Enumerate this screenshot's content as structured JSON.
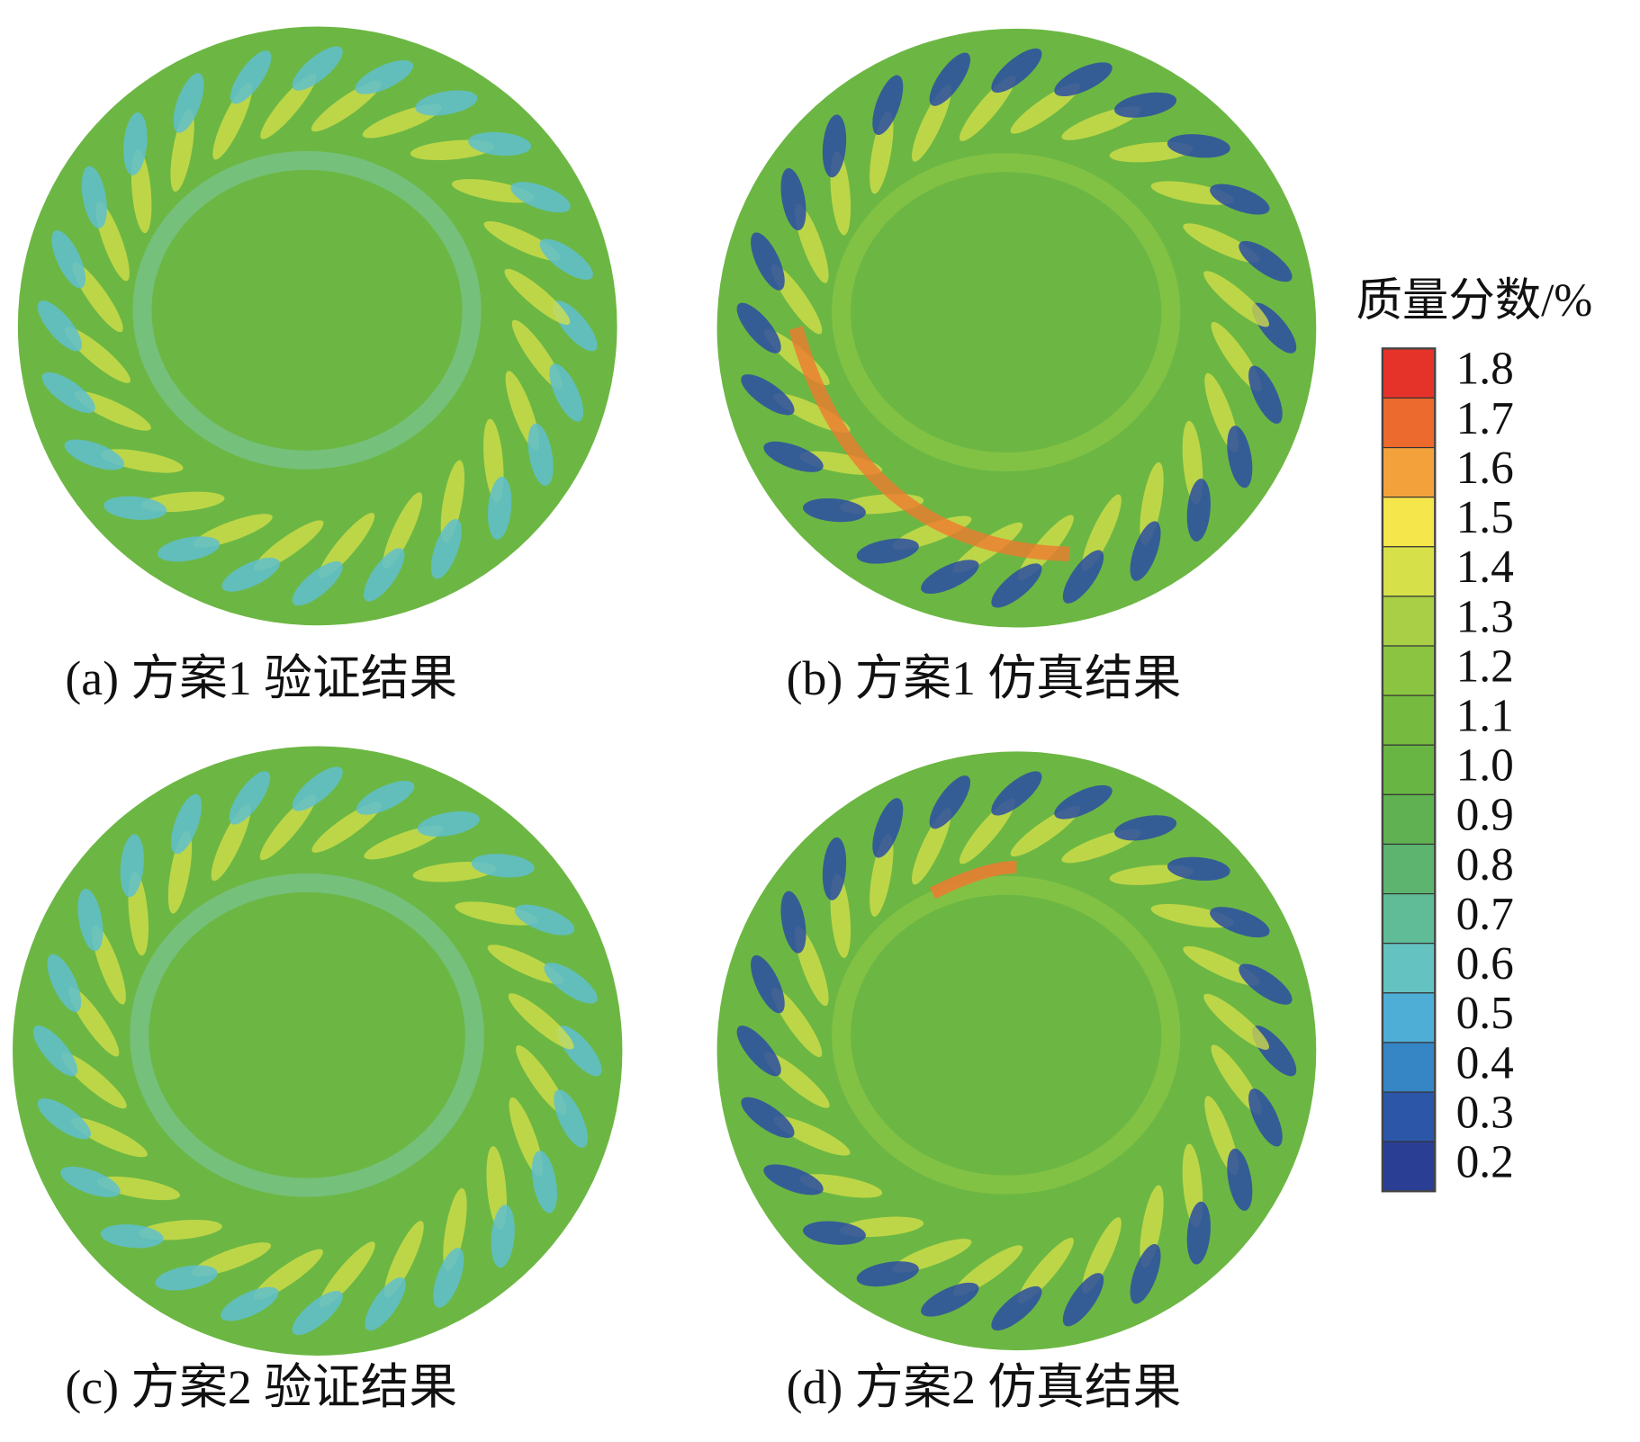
{
  "panels": [
    {
      "caption": "(a) 方案1 验证结果"
    },
    {
      "caption": "(b) 方案1 仿真结果"
    },
    {
      "caption": "(c) 方案2 验证结果"
    },
    {
      "caption": "(d) 方案2 仿真结果"
    }
  ],
  "colorbar": {
    "title": "质量分数/%",
    "ticks": [
      1.8,
      1.7,
      1.6,
      1.5,
      1.4,
      1.3,
      1.2,
      1.1,
      {
        "value": 1.0,
        "label": "1.0"
      },
      0.9,
      0.8,
      0.7,
      0.6,
      0.5,
      0.4,
      0.3,
      0.2
    ],
    "colors": [
      "#e5332a",
      "#ec6a2d",
      "#f3a23b",
      "#f5e64b",
      "#d6e14a",
      "#a8cf45",
      "#8bc440",
      "#76bb3f",
      "#69b544",
      "#5fb152",
      "#5cb46f",
      "#5fbc96",
      "#64c3c0",
      "#4eaed6",
      "#3685c4",
      "#2c56a8",
      "#2a3f93"
    ]
  }
}
